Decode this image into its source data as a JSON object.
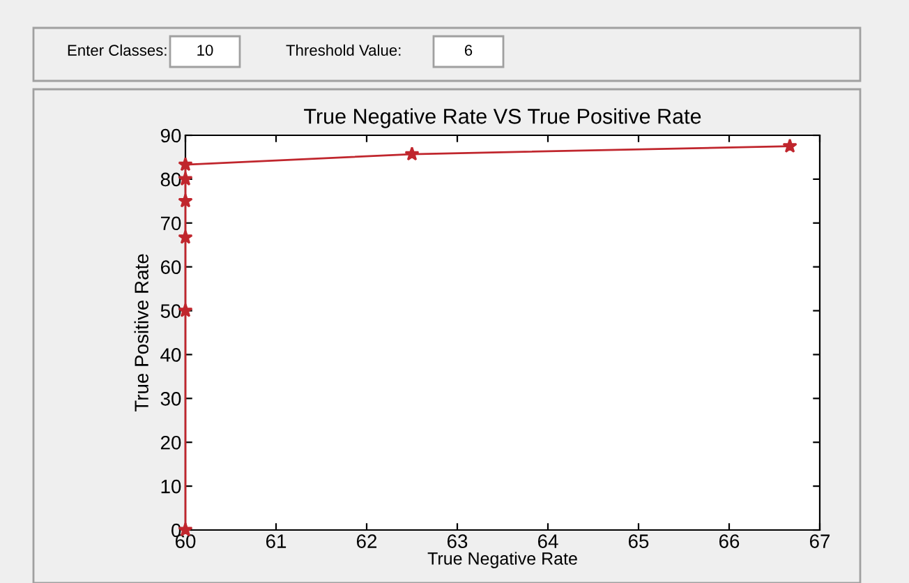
{
  "chart_data": {
    "type": "line",
    "title": "True Negative Rate VS True Positive Rate",
    "xlabel": "True Negative Rate",
    "ylabel": "True Positive Rate",
    "annotations": [
      "Enter Classes:",
      "10",
      "Threshold Value:",
      "6"
    ],
    "x": [
      60,
      60,
      60,
      60,
      60,
      60,
      62.5,
      66.67
    ],
    "series": [
      {
        "color": "#c0262d",
        "values": [
          0,
          50,
          66.7,
          75,
          80,
          83.3,
          85.7,
          87.5
        ]
      }
    ],
    "marker": "star",
    "xlim": [
      60,
      67
    ],
    "xticks": [
      60,
      61,
      62,
      63,
      64,
      65,
      66,
      67
    ],
    "ylim": [
      0,
      90
    ],
    "yticks": [
      0,
      10,
      20,
      30,
      40,
      50,
      60,
      70,
      80,
      90
    ],
    "grid": false,
    "legend": false
  }
}
